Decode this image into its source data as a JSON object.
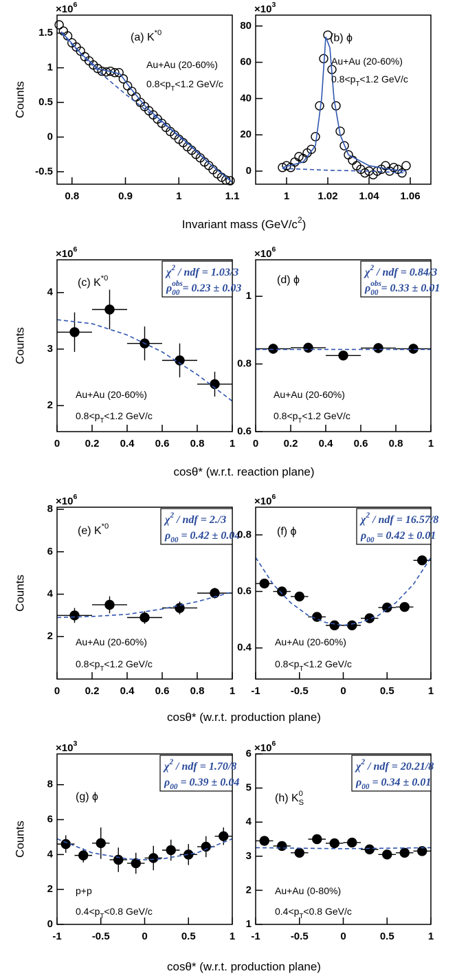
{
  "chart_data": [
    {
      "type": "scatter",
      "multiplier": [
        {
          "t": "×10",
          "sup": "6"
        }
      ],
      "panel_label": [
        {
          "t": "(a) K",
          "sup": "*0"
        }
      ],
      "annotations": [
        [
          {
            "t": "Au+Au (20-60%)"
          }
        ],
        [
          {
            "t": "0.8<p",
            "sub": "T"
          },
          {
            "t": "<1.2 GeV/c"
          }
        ]
      ],
      "xlim": [
        0.772,
        1.1
      ],
      "xticks": [
        0.8,
        0.9,
        1,
        1.1
      ],
      "ylim": [
        -0.68,
        1.76
      ],
      "yticks": [
        -0.5,
        0,
        0.5,
        1,
        1.5
      ],
      "series": [
        {
          "marker": "open-circle",
          "color": "#000000",
          "x": [
            0.776,
            0.784,
            0.792,
            0.8,
            0.808,
            0.816,
            0.824,
            0.832,
            0.84,
            0.848,
            0.856,
            0.864,
            0.872,
            0.88,
            0.888,
            0.896,
            0.904,
            0.912,
            0.92,
            0.928,
            0.936,
            0.944,
            0.952,
            0.96,
            0.968,
            0.976,
            0.984,
            0.992,
            1.0,
            1.008,
            1.016,
            1.024,
            1.032,
            1.04,
            1.048,
            1.056,
            1.064,
            1.072,
            1.08,
            1.088,
            1.096
          ],
          "values": [
            1.62,
            1.53,
            1.46,
            1.36,
            1.3,
            1.24,
            1.16,
            1.1,
            1.04,
            0.99,
            0.95,
            0.94,
            0.95,
            0.93,
            0.93,
            0.84,
            0.74,
            0.66,
            0.58,
            0.5,
            0.44,
            0.38,
            0.32,
            0.26,
            0.2,
            0.14,
            0.08,
            0.03,
            -0.03,
            -0.08,
            -0.14,
            -0.19,
            -0.25,
            -0.3,
            -0.36,
            -0.41,
            -0.47,
            -0.53,
            -0.58,
            -0.62,
            -0.63
          ]
        },
        {
          "line": "solid",
          "color": "#2f55b0",
          "x": [
            0.78,
            0.82,
            0.85,
            0.87,
            0.89,
            0.91,
            0.94,
            0.98,
            1.02,
            1.06,
            1.1
          ],
          "values": [
            1.52,
            1.18,
            0.98,
            0.95,
            0.91,
            0.7,
            0.42,
            0.15,
            -0.11,
            -0.4,
            -0.65
          ]
        },
        {
          "line": "dashed",
          "color": "#2f55b0",
          "x": [
            0.78,
            0.82,
            0.86,
            0.9,
            0.94,
            0.98,
            1.02,
            1.06,
            1.1
          ],
          "values": [
            1.5,
            1.17,
            0.88,
            0.62,
            0.38,
            0.14,
            -0.12,
            -0.4,
            -0.65
          ]
        }
      ]
    },
    {
      "type": "scatter",
      "multiplier": [
        {
          "t": "×10",
          "sup": "3"
        }
      ],
      "panel_label": [
        {
          "t": "(b) ϕ"
        }
      ],
      "annotations": [
        [
          {
            "t": "Au+Au (20-60%)"
          }
        ],
        [
          {
            "t": "0.8<p",
            "sub": "T"
          },
          {
            "t": "<1.2 GeV/c"
          }
        ]
      ],
      "xlim": [
        0.985,
        1.07
      ],
      "xticks": [
        1,
        1.02,
        1.04,
        1.06
      ],
      "ylim": [
        -7.2,
        86
      ],
      "yticks": [
        0,
        20,
        40,
        60,
        80
      ],
      "series": [
        {
          "marker": "open-circle",
          "color": "#000000",
          "x": [
            0.998,
            1.0,
            1.002,
            1.004,
            1.006,
            1.008,
            1.01,
            1.012,
            1.014,
            1.016,
            1.018,
            1.02,
            1.022,
            1.024,
            1.026,
            1.028,
            1.03,
            1.032,
            1.034,
            1.036,
            1.038,
            1.04,
            1.042,
            1.044,
            1.046,
            1.048,
            1.05,
            1.052,
            1.054,
            1.056,
            1.058
          ],
          "values": [
            2,
            3,
            2,
            5,
            8,
            7,
            10,
            12,
            19,
            36,
            62,
            75,
            56,
            36,
            22,
            14,
            9,
            6,
            3,
            1,
            -1,
            0,
            -2,
            0,
            1,
            3,
            0,
            2,
            1,
            -1,
            3
          ]
        },
        {
          "line": "solid",
          "color": "#2f55b0",
          "x": [
            0.998,
            1.008,
            1.014,
            1.017,
            1.019,
            1.021,
            1.023,
            1.026,
            1.03,
            1.04,
            1.05,
            1.058
          ],
          "values": [
            2,
            5,
            14,
            40,
            74,
            68,
            40,
            20,
            9,
            3,
            1,
            0
          ]
        },
        {
          "line": "dashed",
          "color": "#2f55b0",
          "x": [
            0.998,
            1.02,
            1.04,
            1.058
          ],
          "values": [
            1.5,
            0.5,
            0,
            -1
          ]
        }
      ]
    },
    {
      "type": "scatter",
      "multiplier": [
        {
          "t": "×10",
          "sup": "6"
        }
      ],
      "panel_label": [
        {
          "t": "(c) K",
          "sup": "*0"
        }
      ],
      "stats": [
        [
          {
            "t": "χ",
            "sup": "2"
          },
          {
            "t": " / ndf = 1.03/3"
          }
        ],
        [
          {
            "t": "ρ",
            "sub": "00",
            "sup": "obs"
          },
          {
            "t": " = 0.23 ± 0.03"
          }
        ]
      ],
      "annotations": [
        [
          {
            "t": "Au+Au (20-60%)"
          }
        ],
        [
          {
            "t": "0.8<p",
            "sub": "T"
          },
          {
            "t": "<1.2 GeV/c"
          }
        ]
      ],
      "xlim": [
        0,
        1
      ],
      "xticks": [
        0,
        0.2,
        0.4,
        0.6,
        0.8,
        1
      ],
      "ylim": [
        1.54,
        4.58
      ],
      "yticks": [
        2,
        3,
        4
      ],
      "series": [
        {
          "marker": "filled-circle",
          "color": "#000000",
          "x": [
            0.1,
            0.3,
            0.5,
            0.7,
            0.9
          ],
          "xerr": [
            0.1,
            0.1,
            0.1,
            0.1,
            0.1
          ],
          "values": [
            3.3,
            3.7,
            3.1,
            2.8,
            2.38
          ],
          "yerr": [
            0.35,
            0.35,
            0.3,
            0.3,
            0.22
          ]
        },
        {
          "line": "dashed",
          "color": "#2f55b0",
          "x": [
            0,
            0.2,
            0.4,
            0.6,
            0.8,
            1
          ],
          "values": [
            3.52,
            3.45,
            3.25,
            2.95,
            2.55,
            2.08
          ]
        }
      ]
    },
    {
      "type": "scatter",
      "multiplier": [
        {
          "t": "×10",
          "sup": "6"
        }
      ],
      "panel_label": [
        {
          "t": "(d) ϕ"
        }
      ],
      "stats": [
        [
          {
            "t": "χ",
            "sup": "2"
          },
          {
            "t": " / ndf = 0.84/3"
          }
        ],
        [
          {
            "t": "ρ",
            "sub": "00",
            "sup": "obs"
          },
          {
            "t": " = 0.33 ± 0.01"
          }
        ]
      ],
      "annotations": [
        [
          {
            "t": "Au+Au (20-60%)"
          }
        ],
        [
          {
            "t": "0.8<p",
            "sub": "T"
          },
          {
            "t": "<1.2 GeV/c"
          }
        ]
      ],
      "xlim": [
        0,
        1
      ],
      "xticks": [
        0,
        0.2,
        0.4,
        0.6,
        0.8,
        1
      ],
      "ylim": [
        0.6,
        1.108
      ],
      "yticks": [
        0.6,
        0.8,
        1
      ],
      "series": [
        {
          "marker": "filled-circle",
          "color": "#000000",
          "x": [
            0.1,
            0.3,
            0.5,
            0.7,
            0.9
          ],
          "xerr": [
            0.1,
            0.1,
            0.1,
            0.1,
            0.1
          ],
          "values": [
            0.845,
            0.848,
            0.825,
            0.847,
            0.845
          ],
          "yerr": [
            0.015,
            0.015,
            0.012,
            0.015,
            0.015
          ]
        },
        {
          "line": "dashed",
          "color": "#2f55b0",
          "x": [
            0,
            1
          ],
          "values": [
            0.843,
            0.843
          ]
        }
      ]
    },
    {
      "type": "scatter",
      "multiplier": [
        {
          "t": "×10",
          "sup": "6"
        }
      ],
      "panel_label": [
        {
          "t": "(e) K",
          "sup": "*0"
        }
      ],
      "stats": [
        [
          {
            "t": "χ",
            "sup": "2"
          },
          {
            "t": " / ndf = 2./3"
          }
        ],
        [
          {
            "t": "ρ",
            "sub": "00"
          },
          {
            "t": " = 0.42 ± 0.04"
          }
        ]
      ],
      "annotations": [
        [
          {
            "t": "Au+Au (20-60%)"
          }
        ],
        [
          {
            "t": "0.8<p",
            "sub": "T"
          },
          {
            "t": "<1.2 GeV/c"
          }
        ]
      ],
      "xlim": [
        0,
        1
      ],
      "xticks": [
        0,
        0.2,
        0.4,
        0.6,
        0.8,
        1
      ],
      "ylim": [
        0,
        8.1
      ],
      "yticks": [
        2,
        4,
        6,
        8
      ],
      "series": [
        {
          "marker": "filled-circle",
          "color": "#000000",
          "x": [
            0.1,
            0.3,
            0.5,
            0.7,
            0.9
          ],
          "xerr": [
            0.1,
            0.1,
            0.1,
            0.1,
            0.1
          ],
          "values": [
            3.0,
            3.5,
            2.9,
            3.35,
            4.05
          ],
          "yerr": [
            0.35,
            0.4,
            0.3,
            0.3,
            0.25
          ]
        },
        {
          "line": "dashed",
          "color": "#2f55b0",
          "x": [
            0,
            0.2,
            0.4,
            0.6,
            0.8,
            1
          ],
          "values": [
            2.9,
            2.95,
            3.05,
            3.3,
            3.65,
            4.1
          ]
        }
      ]
    },
    {
      "type": "scatter",
      "multiplier": [
        {
          "t": "×10",
          "sup": "6"
        }
      ],
      "panel_label": [
        {
          "t": "(f) ϕ"
        }
      ],
      "stats": [
        [
          {
            "t": "χ",
            "sup": "2"
          },
          {
            "t": " / ndf = 16.57/8"
          }
        ],
        [
          {
            "t": "ρ",
            "sub": "00"
          },
          {
            "t": " = 0.42 ± 0.01"
          }
        ]
      ],
      "annotations": [
        [
          {
            "t": "Au+Au (20-60%)"
          }
        ],
        [
          {
            "t": "0.8<p",
            "sub": "T"
          },
          {
            "t": "<1.2 GeV/c"
          }
        ]
      ],
      "xlim": [
        -1,
        1
      ],
      "xticks": [
        -1,
        -0.5,
        0,
        0.5,
        1
      ],
      "ylim": [
        0.29,
        0.898
      ],
      "yticks": [
        0.4,
        0.6,
        0.8
      ],
      "series": [
        {
          "marker": "filled-circle",
          "color": "#000000",
          "x": [
            -0.9,
            -0.7,
            -0.5,
            -0.3,
            -0.1,
            0.1,
            0.3,
            0.5,
            0.7,
            0.9
          ],
          "xerr": [
            0.1,
            0.1,
            0.1,
            0.1,
            0.1,
            0.1,
            0.1,
            0.1,
            0.1,
            0.1
          ],
          "values": [
            0.628,
            0.6,
            0.582,
            0.51,
            0.48,
            0.48,
            0.505,
            0.543,
            0.545,
            0.71
          ],
          "yerr": [
            0.015,
            0.015,
            0.015,
            0.012,
            0.012,
            0.012,
            0.012,
            0.013,
            0.013,
            0.015
          ]
        },
        {
          "line": "dashed",
          "color": "#2f55b0",
          "x": [
            -1,
            -0.8,
            -0.6,
            -0.4,
            -0.2,
            0,
            0.2,
            0.4,
            0.6,
            0.8,
            1
          ],
          "values": [
            0.72,
            0.625,
            0.56,
            0.515,
            0.49,
            0.48,
            0.49,
            0.515,
            0.56,
            0.625,
            0.72
          ]
        }
      ]
    },
    {
      "type": "scatter",
      "multiplier": [
        {
          "t": "×10",
          "sup": "3"
        }
      ],
      "panel_label": [
        {
          "t": "(g) ϕ"
        }
      ],
      "stats": [
        [
          {
            "t": "χ",
            "sup": "2"
          },
          {
            "t": " / ndf = 1.70/8"
          }
        ],
        [
          {
            "t": "ρ",
            "sub": "00"
          },
          {
            "t": " = 0.39 ± 0.04"
          }
        ]
      ],
      "annotations": [
        [
          {
            "t": "p+p"
          }
        ],
        [
          {
            "t": "0.4<p",
            "sub": "T"
          },
          {
            "t": "<0.8 GeV/c"
          }
        ]
      ],
      "xlim": [
        -1,
        1
      ],
      "xticks": [
        -1,
        -0.5,
        0,
        0.5,
        1
      ],
      "ylim": [
        0,
        9.76
      ],
      "yticks": [
        0,
        2,
        4,
        6,
        8
      ],
      "series": [
        {
          "marker": "filled-circle",
          "color": "#000000",
          "x": [
            -0.9,
            -0.7,
            -0.5,
            -0.3,
            -0.1,
            0.1,
            0.3,
            0.5,
            0.7,
            0.9
          ],
          "xerr": [
            0.1,
            0.1,
            0.1,
            0.1,
            0.1,
            0.1,
            0.1,
            0.1,
            0.1,
            0.1
          ],
          "values": [
            4.6,
            3.95,
            4.65,
            3.7,
            3.5,
            3.8,
            4.25,
            4.0,
            4.45,
            5.05
          ],
          "yerr": [
            0.5,
            0.4,
            0.9,
            0.7,
            0.6,
            0.7,
            0.6,
            0.6,
            0.6,
            0.5
          ]
        },
        {
          "line": "dashed",
          "color": "#2f55b0",
          "x": [
            -1,
            -0.6,
            -0.2,
            0,
            0.2,
            0.6,
            1
          ],
          "values": [
            4.9,
            4.1,
            3.75,
            3.7,
            3.75,
            4.1,
            4.9
          ]
        }
      ]
    },
    {
      "type": "scatter",
      "multiplier": [
        {
          "t": "×10",
          "sup": "6"
        }
      ],
      "panel_label": [
        {
          "t": "(h) K",
          "sub": "S",
          "sup": "0"
        }
      ],
      "stats": [
        [
          {
            "t": "χ",
            "sup": "2"
          },
          {
            "t": " / ndf = 20.21/8"
          }
        ],
        [
          {
            "t": "ρ",
            "sub": "00"
          },
          {
            "t": " = 0.34 ± 0.01"
          }
        ]
      ],
      "annotations": [
        [
          {
            "t": "Au+Au (0-80%)"
          }
        ],
        [
          {
            "t": "0.4<p",
            "sub": "T"
          },
          {
            "t": "<0.8 GeV/c"
          }
        ]
      ],
      "xlim": [
        -1,
        1
      ],
      "xticks": [
        -1,
        -0.5,
        0,
        0.5,
        1
      ],
      "ylim": [
        1,
        6
      ],
      "yticks": [
        1,
        2,
        3,
        4,
        5,
        6
      ],
      "series": [
        {
          "marker": "filled-circle",
          "color": "#000000",
          "x": [
            -0.9,
            -0.7,
            -0.5,
            -0.3,
            -0.1,
            0.1,
            0.3,
            0.5,
            0.7,
            0.9
          ],
          "xerr": [
            0.1,
            0.1,
            0.1,
            0.1,
            0.1,
            0.1,
            0.1,
            0.1,
            0.1,
            0.1
          ],
          "values": [
            3.45,
            3.3,
            3.1,
            3.5,
            3.38,
            3.4,
            3.2,
            3.05,
            3.1,
            3.15
          ],
          "yerr": [
            0.08,
            0.08,
            0.08,
            0.1,
            0.12,
            0.12,
            0.08,
            0.08,
            0.08,
            0.08
          ]
        },
        {
          "line": "dashed",
          "color": "#2f55b0",
          "x": [
            -1,
            0,
            1
          ],
          "values": [
            3.25,
            3.22,
            3.25
          ]
        }
      ]
    }
  ],
  "row_labels": [
    {
      "y": "Counts",
      "x": [
        {
          "t": "Invariant mass (GeV/c",
          "sup": "2"
        },
        {
          "t": ")"
        }
      ]
    },
    {
      "y": "Counts",
      "x": [
        {
          "t": "cosθ* (w.r.t. reaction plane)"
        }
      ]
    },
    {
      "y": "Counts",
      "x": [
        {
          "t": "cosθ* (w.r.t. production plane)"
        }
      ]
    },
    {
      "y": "Counts",
      "x": [
        {
          "t": "cosθ* (w.r.t. production plane)"
        }
      ]
    }
  ]
}
